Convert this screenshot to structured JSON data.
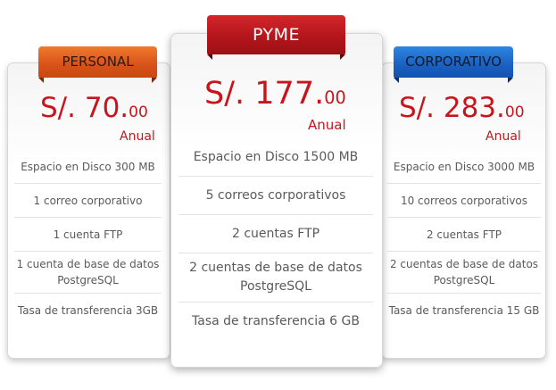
{
  "plans": [
    {
      "name": "PERSONAL",
      "price_prefix": "S/.",
      "price_int": "70.",
      "price_dec": "00",
      "period": "Anual",
      "features": [
        "Espacio en Disco 300 MB",
        "1  correo corporativo",
        "1 cuenta FTP",
        "1 cuenta de base de datos PostgreSQL",
        "Tasa de transferencia 3GB"
      ],
      "accent_color": "#d9541a"
    },
    {
      "name": "PYME",
      "price_prefix": "S/.",
      "price_int": "177.",
      "price_dec": "00",
      "period": "Anual",
      "features": [
        "Espacio en Disco 1500 MB",
        "5 correos corporativos",
        "2 cuentas FTP",
        "2 cuentas de base de datos PostgreSQL",
        "Tasa de transferencia 6 GB"
      ],
      "accent_color": "#b3161c"
    },
    {
      "name": "CORPORATIVO",
      "price_prefix": "S/.",
      "price_int": "283.",
      "price_dec": "00",
      "period": "Anual",
      "features": [
        "Espacio en Disco 3000 MB",
        "10 correos corporativos",
        "2 cuentas FTP",
        "2 cuentas de base de datos PostgreSQL",
        "Tasa de transferencia 15 GB"
      ],
      "accent_color": "#1b63c4"
    }
  ],
  "price_color": "#c8141c"
}
